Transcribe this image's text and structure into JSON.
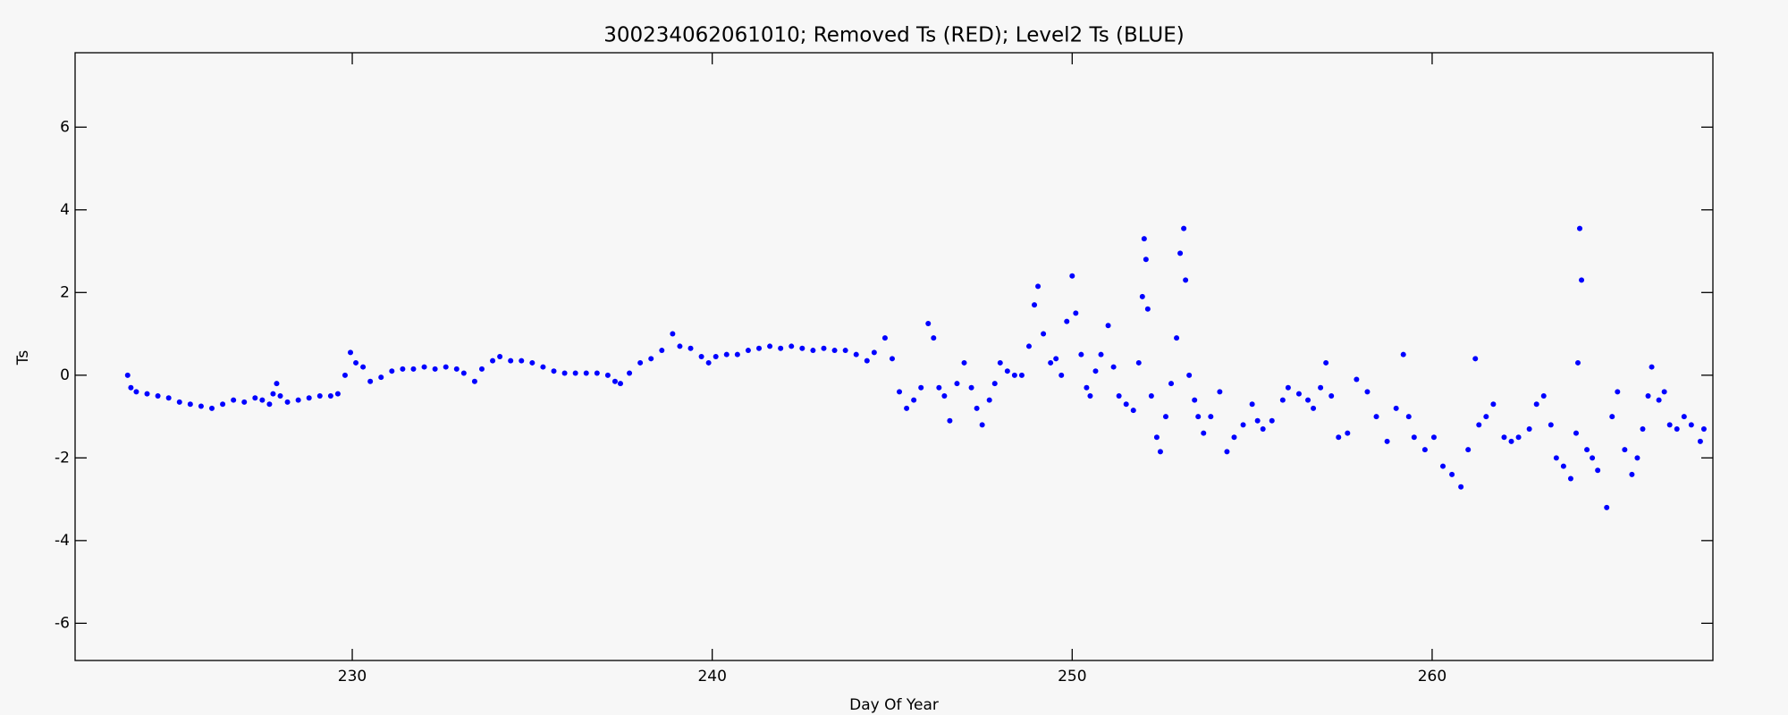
{
  "chart_data": {
    "type": "scatter",
    "title": "300234062061010; Removed Ts (RED); Level2 Ts (BLUE)",
    "xlabel": "Day Of Year",
    "ylabel": "Ts",
    "xlim": [
      222.3,
      267.8
    ],
    "ylim": [
      -6.9,
      7.8
    ],
    "xticks": [
      230,
      240,
      250,
      260
    ],
    "yticks": [
      -6,
      -4,
      -2,
      0,
      2,
      4,
      6
    ],
    "series": [
      {
        "color": "#0000ff",
        "x": [
          223.76,
          223.85,
          224.0,
          224.3,
          224.6,
          224.9,
          225.2,
          225.5,
          225.8,
          226.1,
          226.4,
          226.7,
          227.0,
          227.3,
          227.5,
          227.7,
          227.8,
          227.9,
          228.0,
          228.2,
          228.5,
          228.8,
          229.1,
          229.4,
          229.6,
          229.8,
          229.95,
          230.1,
          230.3,
          230.5,
          230.8,
          231.1,
          231.4,
          231.7,
          232.0,
          232.3,
          232.6,
          232.9,
          233.1,
          233.4,
          233.6,
          233.9,
          234.1,
          234.4,
          234.7,
          235.0,
          235.3,
          235.6,
          235.9,
          236.2,
          236.5,
          236.8,
          237.1,
          237.3,
          237.45,
          237.7,
          238.0,
          238.3,
          238.6,
          238.9,
          239.1,
          239.4,
          239.7,
          239.9,
          240.1,
          240.4,
          240.7,
          241.0,
          241.3,
          241.6,
          241.9,
          242.2,
          242.5,
          242.8,
          243.1,
          243.4,
          243.7,
          244.0,
          244.3,
          244.5,
          244.8,
          245.0,
          245.2,
          245.4,
          245.6,
          245.8,
          246.0,
          246.15,
          246.3,
          246.45,
          246.6,
          246.8,
          247.0,
          247.2,
          247.35,
          247.5,
          247.7,
          247.85,
          248.0,
          248.2,
          248.4,
          248.6,
          248.8,
          248.95,
          249.05,
          249.2,
          249.4,
          249.55,
          249.7,
          249.85,
          250.0,
          250.1,
          250.25,
          250.4,
          250.5,
          250.65,
          250.8,
          251.0,
          251.15,
          251.3,
          251.5,
          251.7,
          251.85,
          251.95,
          252.0,
          252.05,
          252.1,
          252.2,
          252.35,
          252.45,
          252.6,
          252.75,
          252.9,
          253.0,
          253.1,
          253.15,
          253.25,
          253.4,
          253.5,
          253.65,
          253.85,
          254.1,
          254.3,
          254.5,
          254.75,
          255.0,
          255.15,
          255.3,
          255.55,
          255.85,
          256.0,
          256.3,
          256.55,
          256.7,
          256.9,
          257.05,
          257.2,
          257.4,
          257.65,
          257.9,
          258.2,
          258.45,
          258.75,
          259.0,
          259.2,
          259.35,
          259.5,
          259.8,
          260.05,
          260.3,
          260.55,
          260.8,
          261.0,
          261.2,
          261.3,
          261.5,
          261.7,
          262.0,
          262.2,
          262.4,
          262.7,
          262.9,
          263.1,
          263.3,
          263.45,
          263.65,
          263.85,
          264.0,
          264.05,
          264.1,
          264.15,
          264.3,
          264.45,
          264.6,
          264.85,
          265.0,
          265.15,
          265.35,
          265.55,
          265.7,
          265.85,
          266.0,
          266.1,
          266.3,
          266.45,
          266.6,
          266.8,
          267.0,
          267.2,
          267.45,
          267.55
        ],
        "values": [
          0.0,
          -0.3,
          -0.4,
          -0.45,
          -0.5,
          -0.55,
          -0.65,
          -0.7,
          -0.75,
          -0.8,
          -0.7,
          -0.6,
          -0.65,
          -0.55,
          -0.6,
          -0.7,
          -0.45,
          -0.2,
          -0.5,
          -0.65,
          -0.6,
          -0.55,
          -0.5,
          -0.5,
          -0.45,
          0.0,
          0.55,
          0.3,
          0.2,
          -0.15,
          -0.05,
          0.1,
          0.15,
          0.15,
          0.2,
          0.15,
          0.2,
          0.15,
          0.05,
          -0.15,
          0.15,
          0.35,
          0.45,
          0.35,
          0.35,
          0.3,
          0.2,
          0.1,
          0.05,
          0.05,
          0.05,
          0.05,
          0.0,
          -0.15,
          -0.2,
          0.05,
          0.3,
          0.4,
          0.6,
          1.0,
          0.7,
          0.65,
          0.45,
          0.3,
          0.45,
          0.5,
          0.5,
          0.6,
          0.65,
          0.7,
          0.65,
          0.7,
          0.65,
          0.6,
          0.65,
          0.6,
          0.6,
          0.5,
          0.35,
          0.55,
          0.9,
          0.4,
          -0.4,
          -0.8,
          -0.6,
          -0.3,
          1.25,
          0.9,
          -0.3,
          -0.5,
          -1.1,
          -0.2,
          0.3,
          -0.3,
          -0.8,
          -1.2,
          -0.6,
          -0.2,
          0.3,
          0.1,
          0.0,
          0.0,
          0.7,
          1.7,
          2.15,
          1.0,
          0.3,
          0.4,
          0.0,
          1.3,
          2.4,
          1.5,
          0.5,
          -0.3,
          -0.5,
          0.1,
          0.5,
          1.2,
          0.2,
          -0.5,
          -0.7,
          -0.85,
          0.3,
          1.9,
          3.3,
          2.8,
          1.6,
          -0.5,
          -1.5,
          -1.85,
          -1.0,
          -0.2,
          0.9,
          2.95,
          3.55,
          2.3,
          0.0,
          -0.6,
          -1.0,
          -1.4,
          -1.0,
          -0.4,
          -1.85,
          -1.5,
          -1.2,
          -0.7,
          -1.1,
          -1.3,
          -1.1,
          -0.6,
          -0.3,
          -0.45,
          -0.6,
          -0.8,
          -0.3,
          0.3,
          -0.5,
          -1.5,
          -1.4,
          -0.1,
          -0.4,
          -1.0,
          -1.6,
          -0.8,
          0.5,
          -1.0,
          -1.5,
          -1.8,
          -1.5,
          -2.2,
          -2.4,
          -2.7,
          -1.8,
          0.4,
          -1.2,
          -1.0,
          -0.7,
          -1.5,
          -1.6,
          -1.5,
          -1.3,
          -0.7,
          -0.5,
          -1.2,
          -2.0,
          -2.2,
          -2.5,
          -1.4,
          0.3,
          3.55,
          2.3,
          -1.8,
          -2.0,
          -2.3,
          -3.2,
          -1.0,
          -0.4,
          -1.8,
          -2.4,
          -2.0,
          -1.3,
          -0.5,
          0.2,
          -0.6,
          -0.4,
          -1.2,
          -1.3,
          -1.0,
          -1.2,
          -1.6,
          -1.3
        ]
      }
    ]
  }
}
